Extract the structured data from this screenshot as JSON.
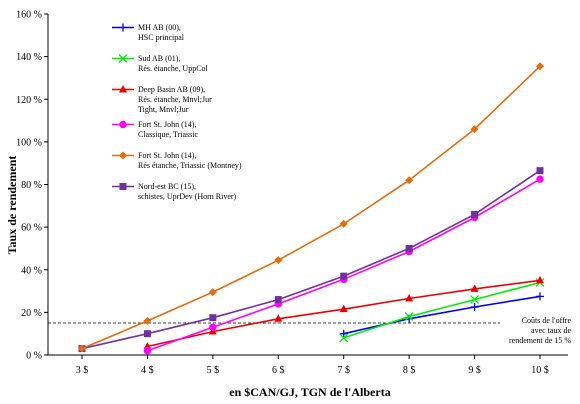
{
  "chart_data": {
    "type": "line",
    "xlabel": "en $CAN/GJ, TGN de l'Alberta",
    "ylabel": "Taux de rendement",
    "categories": [
      "3 $",
      "4 $",
      "5 $",
      "6 $",
      "7 $",
      "8 $",
      "9 $",
      "10 $"
    ],
    "x": [
      3,
      4,
      5,
      6,
      7,
      8,
      9,
      10
    ],
    "xlim": [
      3,
      10
    ],
    "ylim": [
      0,
      160
    ],
    "yticks": [
      "0 %",
      "20 %",
      "40 %",
      "60 %",
      "80 %",
      "100 %",
      "120 %",
      "140 %",
      "160 %"
    ],
    "grid": false,
    "legend_position": "top-left",
    "series": [
      {
        "name_lines": [
          "MH AB (00),",
          "HSC principal"
        ],
        "color": "#0000ff",
        "marker": "plus",
        "x": [
          7,
          8,
          9,
          10
        ],
        "values": [
          10,
          17,
          22.5,
          27.5
        ]
      },
      {
        "name_lines": [
          "Sud AB (01),",
          "Rés. étanche, UppCol"
        ],
        "color": "#00ee00",
        "marker": "x",
        "x": [
          7,
          8,
          9,
          10
        ],
        "values": [
          8,
          18,
          26,
          34
        ]
      },
      {
        "name_lines": [
          "Deep Basin AB (09),",
          "Rés. étanche, Mnvl;Jur",
          "Tight, Mnvl;Jur"
        ],
        "color": "#ee0000",
        "marker": "triangle",
        "x": [
          4,
          5,
          6,
          7,
          8,
          9,
          10
        ],
        "values": [
          4,
          11,
          17,
          21.5,
          26.5,
          31,
          35
        ]
      },
      {
        "name_lines": [
          "Fort St. John (14),",
          "Classique, Triassic"
        ],
        "color": "#ff00ff",
        "marker": "circle",
        "x": [
          4,
          5,
          6,
          7,
          8,
          9,
          10
        ],
        "values": [
          2,
          13,
          24,
          35.5,
          48.5,
          64.5,
          82.5
        ]
      },
      {
        "name_lines": [
          "Fort St. John (14),",
          "Rés étanche,  Triassic  (Montney)"
        ],
        "color": "#e46c0a",
        "marker": "diamond",
        "x": [
          3,
          4,
          5,
          6,
          7,
          8,
          9,
          10
        ],
        "values": [
          3,
          16,
          29.5,
          44.5,
          61.5,
          82,
          106,
          135.5
        ]
      },
      {
        "name_lines": [
          "Nord-est BC (15),",
          "schistes, UprDev (Horn River)"
        ],
        "color": "#7030a0",
        "marker": "square",
        "x": [
          3,
          4,
          5,
          6,
          7,
          8,
          9,
          10
        ],
        "values": [
          3,
          10,
          17.5,
          26,
          37,
          50,
          66,
          86.5
        ]
      }
    ],
    "reference_line": {
      "value": 15,
      "style": "dashed",
      "label_lines": [
        "Coûts de l'offre",
        "avec taux de",
        "rendement de 15 %"
      ]
    }
  }
}
